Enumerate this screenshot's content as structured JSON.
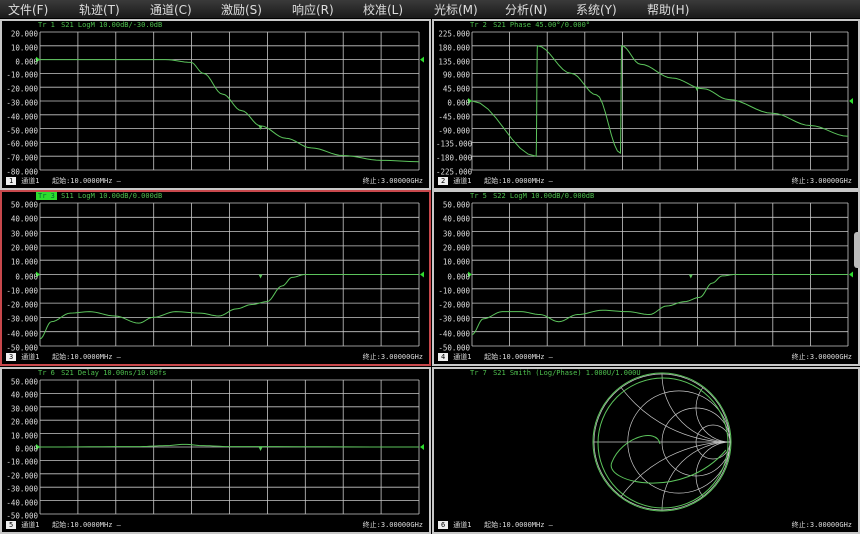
{
  "menu": [
    "文件(F)",
    "轨迹(T)",
    "通道(C)",
    "激励(S)",
    "响应(R)",
    "校准(L)",
    "光标(M)",
    "分析(N)",
    "系统(Y)",
    "帮助(H)"
  ],
  "colors": {
    "trace": "#5cc45c",
    "grid": "#c8c8c8",
    "active_border": "#c8484c",
    "ref_marker": "#2edc2e"
  },
  "panels": [
    {
      "trace_label": "Tr 1",
      "header": "S21 LogM 10.00dB/-30.0dB",
      "y_ticks": [
        "20.000",
        "10.000",
        "0.000",
        "-10.000",
        "-20.000",
        "-30.000",
        "-40.000",
        "-50.000",
        "-60.000",
        "-70.000",
        "-80.000"
      ],
      "ymax": 20,
      "ymin": -80,
      "ref": 0,
      "channel_badge": "1",
      "channel": "通道1",
      "start": "起始:10.0000MHz —",
      "stop": "终止:3.00000GHz",
      "active": false,
      "trace": [
        [
          0.01,
          0
        ],
        [
          1.0,
          0
        ],
        [
          1.2,
          -2
        ],
        [
          1.3,
          -10
        ],
        [
          1.45,
          -25
        ],
        [
          1.6,
          -37
        ],
        [
          1.75,
          -48
        ],
        [
          1.95,
          -57
        ],
        [
          2.15,
          -64
        ],
        [
          2.4,
          -69.5
        ],
        [
          2.7,
          -73
        ],
        [
          3.0,
          -74
        ]
      ],
      "marker": [
        1.75,
        -48
      ]
    },
    {
      "trace_label": "Tr 2",
      "header": "S21 Phase 45.00°/0.000°",
      "y_ticks": [
        "225.000",
        "180.000",
        "135.000",
        "90.000",
        "45.000",
        "0.000",
        "-45.000",
        "-90.000",
        "-135.000",
        "-180.000",
        "-225.000"
      ],
      "ymax": 225,
      "ymin": -225,
      "ref": 0,
      "channel_badge": "2",
      "channel": "通道1",
      "start": "起始:10.0000MHz —",
      "stop": "终止:3.00000GHz",
      "active": false,
      "trace": [
        [
          0.01,
          0
        ],
        [
          0.52,
          -180
        ],
        [
          0.53,
          180
        ],
        [
          0.8,
          90
        ],
        [
          1.0,
          20
        ],
        [
          1.19,
          -170
        ],
        [
          1.2,
          180
        ],
        [
          1.35,
          120
        ],
        [
          1.6,
          75
        ],
        [
          1.85,
          40
        ],
        [
          2.05,
          5
        ],
        [
          2.4,
          -40
        ],
        [
          2.7,
          -80
        ],
        [
          3.0,
          -115
        ]
      ],
      "marker": [
        1.8,
        45
      ]
    },
    {
      "trace_label": "Tr 3",
      "header": "S11 LogM 10.00dB/0.000dB",
      "y_ticks": [
        "50.000",
        "40.000",
        "30.000",
        "20.000",
        "10.000",
        "0.000",
        "-10.000",
        "-20.000",
        "-30.000",
        "-40.000",
        "-50.000"
      ],
      "ymax": 50,
      "ymin": -50,
      "ref": 0,
      "channel_badge": "3",
      "channel": "通道1",
      "start": "起始:10.0000MHz —",
      "stop": "终止:3.00000GHz",
      "active": true,
      "trace": [
        [
          0.01,
          -45
        ],
        [
          0.1,
          -33
        ],
        [
          0.25,
          -27
        ],
        [
          0.4,
          -26
        ],
        [
          0.6,
          -29
        ],
        [
          0.79,
          -34
        ],
        [
          0.9,
          -30
        ],
        [
          1.08,
          -26
        ],
        [
          1.27,
          -27
        ],
        [
          1.42,
          -29
        ],
        [
          1.56,
          -24
        ],
        [
          1.68,
          -21
        ],
        [
          1.8,
          -19
        ],
        [
          1.92,
          -8
        ],
        [
          2.0,
          -2
        ],
        [
          2.1,
          0
        ],
        [
          3.0,
          0
        ]
      ],
      "marker": [
        1.75,
        0
      ]
    },
    {
      "trace_label": "Tr 5",
      "header": "S22 LogM 10.00dB/0.000dB",
      "y_ticks": [
        "50.000",
        "40.000",
        "30.000",
        "20.000",
        "10.000",
        "0.000",
        "-10.000",
        "-20.000",
        "-30.000",
        "-40.000",
        "-50.000"
      ],
      "ymax": 50,
      "ymin": -50,
      "ref": 0,
      "channel_badge": "4",
      "channel": "通道1",
      "start": "起始:10.0000MHz —",
      "stop": "终止:3.00000GHz",
      "active": false,
      "trace": [
        [
          0.01,
          -42
        ],
        [
          0.1,
          -31
        ],
        [
          0.25,
          -26
        ],
        [
          0.4,
          -26
        ],
        [
          0.55,
          -28
        ],
        [
          0.7,
          -33
        ],
        [
          0.85,
          -28
        ],
        [
          1.05,
          -25
        ],
        [
          1.25,
          -26
        ],
        [
          1.42,
          -28
        ],
        [
          1.56,
          -22
        ],
        [
          1.7,
          -19
        ],
        [
          1.82,
          -16
        ],
        [
          1.92,
          -6
        ],
        [
          2.0,
          -1
        ],
        [
          2.1,
          0
        ],
        [
          3.0,
          0
        ]
      ],
      "marker": [
        1.75,
        0
      ]
    },
    {
      "trace_label": "Tr 6",
      "header": "S21 Delay 10.00ns/10.00fs",
      "y_ticks": [
        "50.000",
        "40.000",
        "30.000",
        "20.000",
        "10.000",
        "0.000",
        "-10.000",
        "-20.000",
        "-30.000",
        "-40.000",
        "-50.000"
      ],
      "ymax": 50,
      "ymin": -50,
      "ref": 0,
      "channel_badge": "5",
      "channel": "通道1",
      "start": "起始:10.0000MHz —",
      "stop": "终止:3.00000GHz",
      "active": false,
      "trace": [
        [
          0.01,
          0
        ],
        [
          0.8,
          0.3
        ],
        [
          1.0,
          1
        ],
        [
          1.15,
          2
        ],
        [
          1.3,
          1
        ],
        [
          1.5,
          0.3
        ],
        [
          3.0,
          0
        ]
      ],
      "marker": [
        1.75,
        0
      ]
    },
    {
      "trace_label": "Tr 7",
      "header": "S21 Smith (Log/Phase) 1.000U/1.000U",
      "smith": true,
      "channel_badge": "6",
      "channel": "通道1",
      "start": "起始:10.0000MHz —",
      "stop": "终止:3.00000GHz",
      "active": false
    }
  ]
}
